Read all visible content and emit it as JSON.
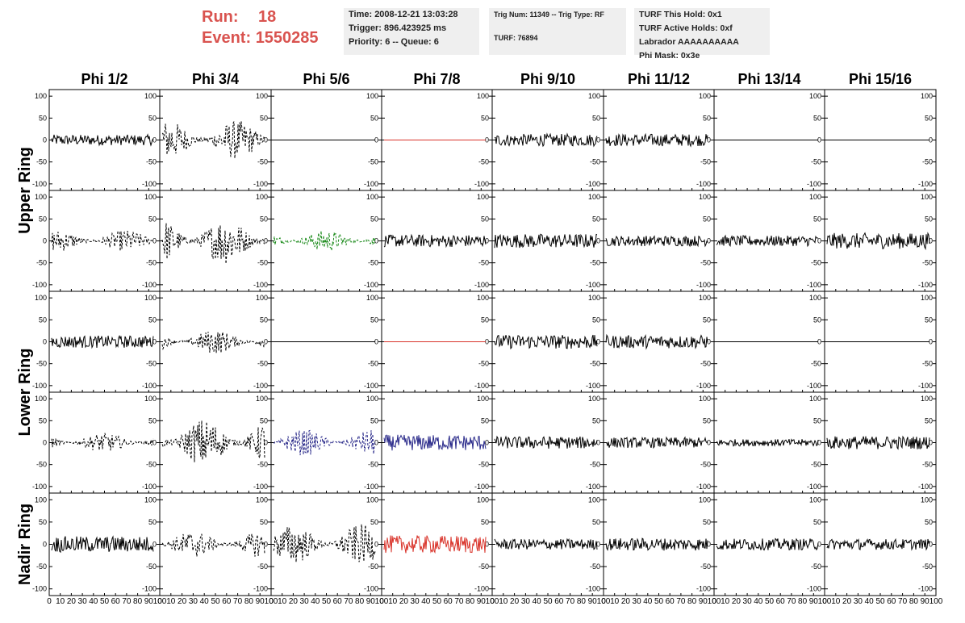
{
  "header": {
    "run_label": "Run:",
    "run_value": "18",
    "event_label": "Event:",
    "event_value": "1550285",
    "time": "Time: 2008-12-21 13:03:28",
    "trigger": "Trigger: 896.423925 ms",
    "priority": "Priority: 6 -- Queue: 6",
    "trig_num": "Trig Num: 11349 -- Trig Type: RF",
    "turf": "TURF: 76894",
    "turf_this_hold": "TURF This Hold: 0x1",
    "turf_active_holds": "TURF Active Holds: 0xf",
    "labrador": "Labrador AAAAAAAAAA",
    "phi_mask": "Phi Mask: 0x3e"
  },
  "chart_data": {
    "type": "line",
    "columns": [
      "Phi 1/2",
      "Phi 3/4",
      "Phi 5/6",
      "Phi 7/8",
      "Phi 9/10",
      "Phi 11/12",
      "Phi 13/14",
      "Phi 15/16"
    ],
    "ring_labels": [
      "Upper Ring",
      "Lower Ring",
      "Nadir Ring"
    ],
    "y_ticks": [
      100,
      50,
      0,
      -50,
      -100
    ],
    "y_range": [
      -115,
      115
    ],
    "x_ticks": [
      "0",
      "10",
      "20",
      "30",
      "40",
      "50",
      "60",
      "70",
      "80",
      "90",
      "100"
    ],
    "x_range": [
      0,
      100
    ],
    "colors": {
      "black": "#000000",
      "red": "#d9342b",
      "green": "#1a8a1a",
      "blue": "#2a2a8a"
    },
    "rows": [
      {
        "panels": [
          {
            "amp": 12,
            "style": "solid",
            "color": "black"
          },
          {
            "amp": 45,
            "style": "dashed",
            "color": "black"
          },
          {
            "amp": 0,
            "style": "solid",
            "color": "black"
          },
          {
            "amp": 0,
            "style": "solid",
            "color": "red"
          },
          {
            "amp": 14,
            "style": "solid",
            "color": "black"
          },
          {
            "amp": 14,
            "style": "solid",
            "color": "black"
          },
          {
            "amp": 0,
            "style": "solid",
            "color": "black"
          },
          {
            "amp": 0,
            "style": "solid",
            "color": "black"
          }
        ]
      },
      {
        "panels": [
          {
            "amp": 25,
            "style": "dashed",
            "color": "black"
          },
          {
            "amp": 55,
            "style": "dashed",
            "color": "black"
          },
          {
            "amp": 25,
            "style": "dashed",
            "color": "green"
          },
          {
            "amp": 14,
            "style": "solid",
            "color": "black"
          },
          {
            "amp": 16,
            "style": "solid",
            "color": "black"
          },
          {
            "amp": 12,
            "style": "solid",
            "color": "black"
          },
          {
            "amp": 12,
            "style": "solid",
            "color": "black"
          },
          {
            "amp": 18,
            "style": "solid",
            "color": "black"
          }
        ]
      },
      {
        "panels": [
          {
            "amp": 14,
            "style": "solid",
            "color": "black"
          },
          {
            "amp": 28,
            "style": "dashed",
            "color": "black"
          },
          {
            "amp": 0,
            "style": "solid",
            "color": "black"
          },
          {
            "amp": 0,
            "style": "solid",
            "color": "red"
          },
          {
            "amp": 16,
            "style": "solid",
            "color": "black"
          },
          {
            "amp": 15,
            "style": "solid",
            "color": "black"
          },
          {
            "amp": 0,
            "style": "solid",
            "color": "black"
          },
          {
            "amp": 0,
            "style": "solid",
            "color": "black"
          }
        ]
      },
      {
        "panels": [
          {
            "amp": 22,
            "style": "dashed",
            "color": "black"
          },
          {
            "amp": 55,
            "style": "dashed",
            "color": "black"
          },
          {
            "amp": 30,
            "style": "dashed",
            "color": "blue"
          },
          {
            "amp": 18,
            "style": "solid",
            "color": "blue"
          },
          {
            "amp": 14,
            "style": "solid",
            "color": "black"
          },
          {
            "amp": 12,
            "style": "solid",
            "color": "black"
          },
          {
            "amp": 8,
            "style": "solid",
            "color": "black"
          },
          {
            "amp": 15,
            "style": "solid",
            "color": "black"
          }
        ]
      },
      {
        "panels": [
          {
            "amp": 18,
            "style": "solid",
            "color": "black"
          },
          {
            "amp": 30,
            "style": "dashed",
            "color": "black"
          },
          {
            "amp": 45,
            "style": "dashed",
            "color": "black"
          },
          {
            "amp": 20,
            "style": "solid",
            "color": "red"
          },
          {
            "amp": 12,
            "style": "solid",
            "color": "black"
          },
          {
            "amp": 14,
            "style": "solid",
            "color": "black"
          },
          {
            "amp": 13,
            "style": "solid",
            "color": "black"
          },
          {
            "amp": 12,
            "style": "solid",
            "color": "black"
          }
        ]
      }
    ]
  }
}
